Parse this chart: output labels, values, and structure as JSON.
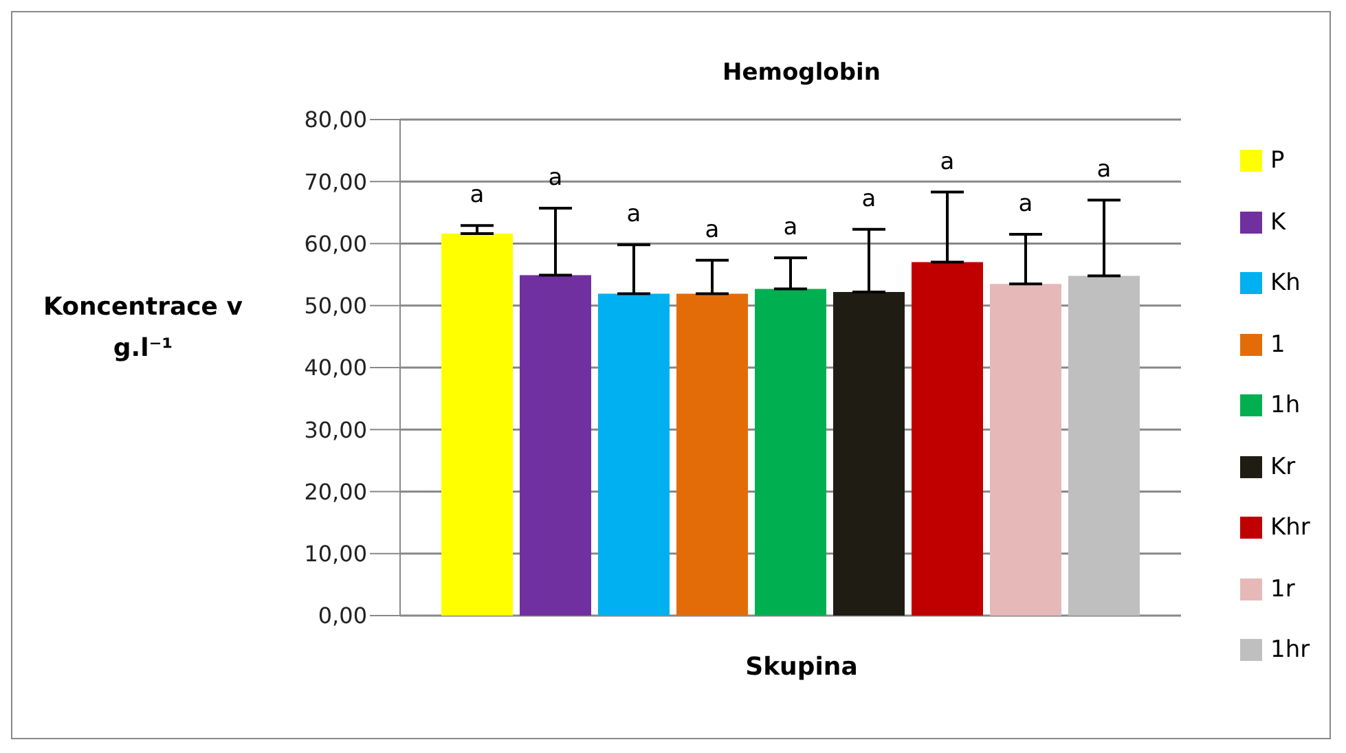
{
  "chart_data": {
    "type": "bar",
    "title": "Hemoglobin",
    "xlabel": "Skupina",
    "ylabel": "Koncentrace v g.l⁻¹",
    "categories": [
      null
    ],
    "series": [
      {
        "name": "P",
        "color": "#ffff00",
        "values": [
          61.6
        ],
        "errors": [
          [
            61.6,
            62.9
          ]
        ]
      },
      {
        "name": "K",
        "color": "#7030a0",
        "values": [
          54.9
        ],
        "errors": [
          [
            54.9,
            65.7
          ]
        ]
      },
      {
        "name": "Kh",
        "color": "#00b0f0",
        "values": [
          51.9
        ],
        "errors": [
          [
            51.9,
            59.8
          ]
        ]
      },
      {
        "name": "1",
        "color": "#e36c09",
        "values": [
          51.9
        ],
        "errors": [
          [
            51.9,
            57.3
          ]
        ]
      },
      {
        "name": "1h",
        "color": "#00b050",
        "values": [
          52.7
        ],
        "errors": [
          [
            52.7,
            57.7
          ]
        ]
      },
      {
        "name": "Kr",
        "color": "#1f1d13",
        "values": [
          52.2
        ],
        "errors": [
          [
            52.2,
            62.3
          ]
        ]
      },
      {
        "name": "Khr",
        "color": "#c00000",
        "values": [
          57.0
        ],
        "errors": [
          [
            57.0,
            68.3
          ]
        ]
      },
      {
        "name": "1r",
        "color": "#e6b9b8",
        "values": [
          53.5
        ],
        "errors": [
          [
            53.5,
            61.5
          ]
        ]
      },
      {
        "name": "1hr",
        "color": "#bfbfbf",
        "values": [
          54.8
        ],
        "errors": [
          [
            54.8,
            67.0
          ]
        ]
      }
    ],
    "annotations": [
      "a",
      "a",
      "a",
      "a",
      "a",
      "a",
      "a",
      "a",
      "a"
    ],
    "ylim": [
      0,
      80
    ],
    "yticks": [
      {
        "value": 0,
        "label": "0,00"
      },
      {
        "value": 10,
        "label": "10,00"
      },
      {
        "value": 20,
        "label": "20,00"
      },
      {
        "value": 30,
        "label": "30,00"
      },
      {
        "value": 40,
        "label": "40,00"
      },
      {
        "value": 50,
        "label": "50,00"
      },
      {
        "value": 60,
        "label": "60,00"
      },
      {
        "value": 70,
        "label": "70,00"
      },
      {
        "value": 80,
        "label": "80,00"
      }
    ],
    "grid": "y",
    "legend": "right"
  }
}
